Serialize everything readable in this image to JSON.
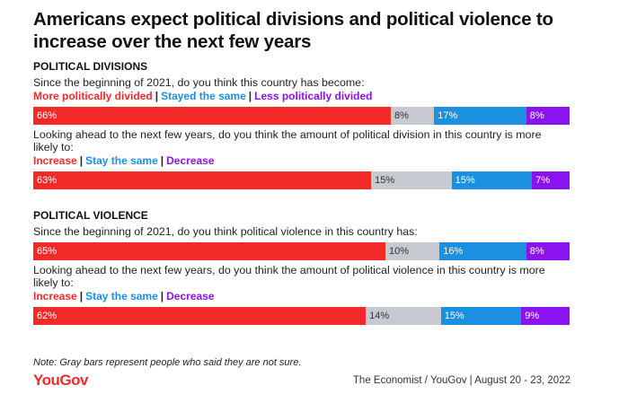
{
  "chart_data": {
    "type": "stacked-bar",
    "title": "Americans expect political divisions and political violence to increase over the next few years",
    "segment_colors": [
      "#f42a2a",
      "#c6c9d0",
      "#1b8fe0",
      "#8b12f1"
    ],
    "label_colors": [
      "#ffffff",
      "#333333",
      "#ffffff",
      "#ffffff"
    ],
    "legend_colors": [
      "#f42a2a",
      "#1b8fe0",
      "#8b12f1"
    ],
    "separator": "|",
    "sections": [
      {
        "heading": "POLITICAL DIVISIONS",
        "questions": [
          {
            "question": "Since the beginning of 2021, do you think this country has become:",
            "legend": [
              "More politically divided",
              "Stayed the same",
              "Less politically divided"
            ],
            "values": [
              66,
              8,
              17,
              8
            ],
            "value_labels": [
              "66%",
              "8%",
              "17%",
              "8%"
            ]
          },
          {
            "question": "Looking ahead to the next few years, do you think the amount of political division in this country is more likely to:",
            "legend": [
              "Increase",
              "Stay the same",
              "Decrease"
            ],
            "values": [
              63,
              15,
              15,
              7
            ],
            "value_labels": [
              "63%",
              "15%",
              "15%",
              "7%"
            ]
          }
        ]
      },
      {
        "heading": "POLITICAL VIOLENCE",
        "questions": [
          {
            "question": "Since the beginning of 2021, do you think political violence in this country has:",
            "values": [
              65,
              10,
              16,
              8
            ],
            "value_labels": [
              "65%",
              "10%",
              "16%",
              "8%"
            ]
          },
          {
            "question": "Looking ahead to the next few years, do you think the amount of political violence in this country is more likely to:",
            "legend": [
              "Increase",
              "Stay the same",
              "Decrease"
            ],
            "values": [
              62,
              14,
              15,
              9
            ],
            "value_labels": [
              "62%",
              "14%",
              "15%",
              "9%"
            ]
          }
        ]
      }
    ],
    "note": "Note: Gray bars represent people who said they are not sure.",
    "logo": "YouGov",
    "source": "The Economist / YouGov | August 20 - 23, 2022"
  }
}
